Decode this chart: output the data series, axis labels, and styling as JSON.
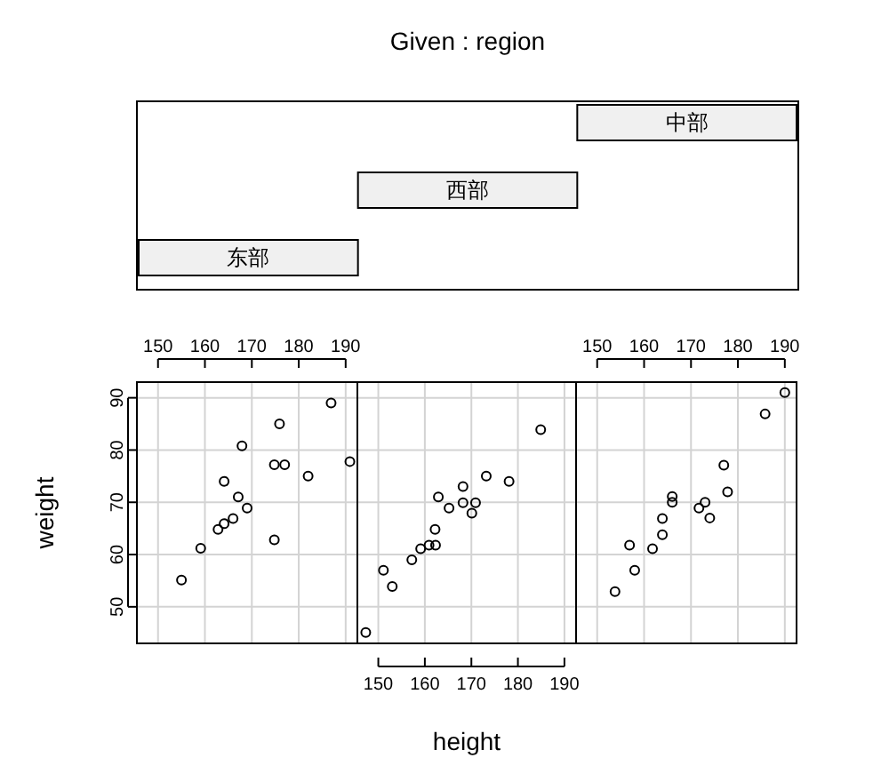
{
  "chart_data": [
    {
      "type": "other",
      "title": "Given : region",
      "categories": [
        "东部",
        "西部",
        "中部"
      ]
    },
    {
      "type": "scatter",
      "ylabel": "weight",
      "xlim": [
        145.5,
        192.5
      ],
      "ylim": [
        43,
        93
      ],
      "xticks": [
        150,
        160,
        170,
        180,
        190
      ],
      "yticks": [
        50,
        60,
        70,
        80,
        90
      ],
      "grid": true,
      "marker": "circle",
      "series": [
        {
          "color": "#000000",
          "x": [
            186.9,
            175.9,
            167.9,
            174.8,
            177.0,
            190.9,
            182.0,
            164.1,
            167.1,
            169.0,
            166.0,
            164.1,
            162.8,
            174.8,
            159.1,
            155.0
          ],
          "values": [
            89.0,
            85.0,
            80.8,
            77.2,
            77.2,
            77.8,
            75.0,
            74.0,
            71.0,
            68.9,
            66.9,
            65.9,
            64.8,
            62.8,
            61.2,
            55.1
          ]
        }
      ]
    },
    {
      "type": "scatter",
      "xlabel": "height",
      "xlim": [
        145.5,
        192.5
      ],
      "ylim": [
        43,
        93
      ],
      "xticks": [
        150,
        160,
        170,
        180,
        190
      ],
      "yticks": [
        50,
        60,
        70,
        80,
        90
      ],
      "grid": true,
      "marker": "circle",
      "tick_labels": "x",
      "series": [
        {
          "color": "#000000",
          "x": [
            147.3,
            184.9,
            173.2,
            178.1,
            168.2,
            162.9,
            165.2,
            168.2,
            170.9,
            170.1,
            162.2,
            160.9,
            162.3,
            159.1,
            157.2,
            151.1,
            153.0
          ],
          "values": [
            45.1,
            83.9,
            75.0,
            74.0,
            73.0,
            71.0,
            68.9,
            69.9,
            69.9,
            67.9,
            64.8,
            61.8,
            61.8,
            61.1,
            59.0,
            57.0,
            53.9
          ]
        }
      ]
    },
    {
      "type": "scatter",
      "xlim": [
        145.5,
        192.5
      ],
      "ylim": [
        43,
        93
      ],
      "xticks": [
        150,
        160,
        170,
        180,
        190
      ],
      "yticks": [
        50,
        60,
        70,
        80,
        90
      ],
      "grid": true,
      "marker": "circle",
      "tick_labels": "x",
      "series": [
        {
          "color": "#000000",
          "x": [
            190.0,
            185.8,
            177.0,
            177.8,
            166.0,
            166.0,
            173.0,
            171.7,
            174.0,
            163.9,
            163.9,
            156.9,
            161.8,
            158.0,
            153.8
          ],
          "values": [
            91.0,
            86.9,
            77.1,
            72.0,
            71.1,
            70.0,
            70.0,
            68.9,
            67.0,
            66.9,
            63.8,
            61.8,
            61.1,
            57.0,
            52.9
          ]
        }
      ]
    }
  ]
}
